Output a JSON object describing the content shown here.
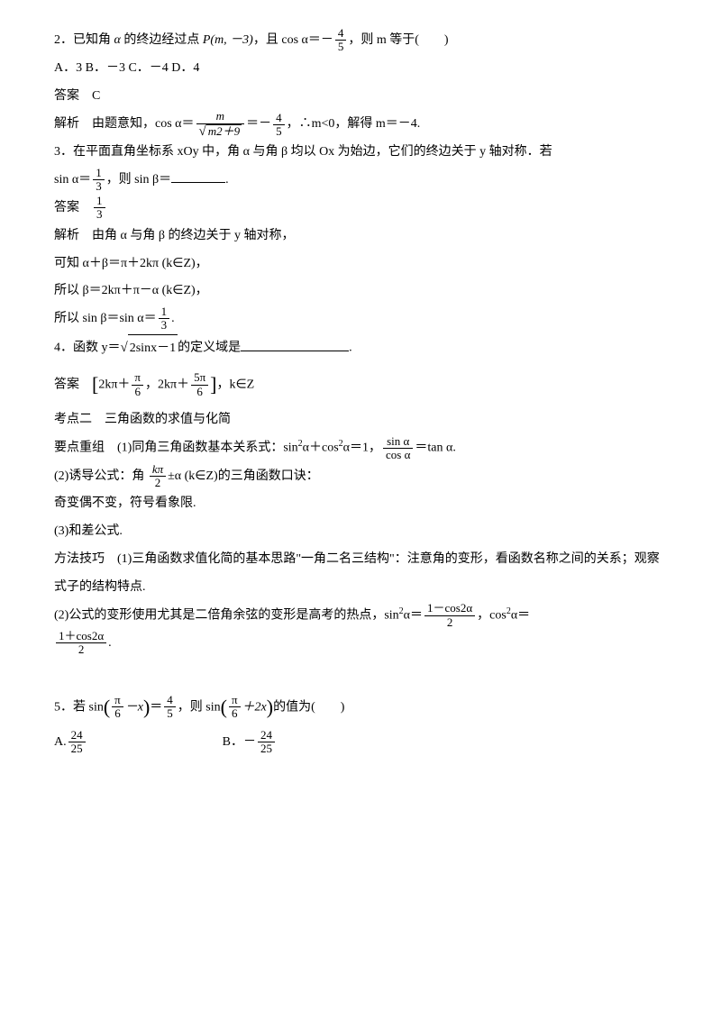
{
  "q2": {
    "stem_a": "2．已知角 ",
    "alpha": "α",
    "stem_b": " 的终边经过点 ",
    "point": "P(m, －3)",
    "stem_c": "，且 cos α＝－",
    "frac_num": "4",
    "frac_den": "5",
    "stem_d": "，则 m 等于(　　)",
    "options": "A．3  B．－3  C．－4  D．4",
    "ans_label": "答案　C",
    "expl_a": "解析　由题意知，cos α＝",
    "expl_frac_num": "m",
    "expl_sqrt": "m2＋9",
    "expl_b": "＝－",
    "expl_c": "，∴m<0，解得 m＝－4."
  },
  "q3": {
    "stem_a": "3．在平面直角坐标系 xOy 中，角 α 与角 β 均以 Ox 为始边，它们的终边关于 y 轴对称．若",
    "stem_b": "sin α＝",
    "frac_num": "1",
    "frac_den": "3",
    "stem_c": "，则 sin β＝",
    "ans_label": "答案　",
    "expl_a": "解析　由角 α 与角 β 的终边关于 y 轴对称，",
    "expl_b": "可知 α＋β＝π＋2kπ (k∈Z)，",
    "expl_c": "所以 β＝2kπ＋π－α (k∈Z)，",
    "expl_d": "所以 sin β＝sin α＝",
    "period": "."
  },
  "q4": {
    "stem_a": "4．函数 y＝",
    "sqrt": "2sinx－1",
    "stem_b": "的定义域是",
    "ans_label": "答案　",
    "br_l": "[",
    "term1_a": "2kπ＋",
    "pi": "π",
    "six": "6",
    "comma": "，",
    "term2_a": "2kπ＋",
    "five_pi": "5π",
    "br_r": "]",
    "ans_tail": "，k∈Z"
  },
  "topic2": {
    "title": "考点二　三角函数的求值与化简",
    "p1_a": "要点重组　(1)同角三角函数基本关系式：sin",
    "p1_b": "α＋cos",
    "p1_c": "α＝1，",
    "sin": "sin α",
    "cos": "cos α",
    "p1_d": "＝tan α.",
    "p2_a": "(2)诱导公式：角 ",
    "kpi": "kπ",
    "two": "2",
    "p2_b": "±α (k∈Z)的三角函数口诀：",
    "p3": "奇变偶不变，符号看象限.",
    "p4": "(3)和差公式.",
    "p5": "方法技巧　(1)三角函数求值化简的基本思路\"一角二名三结构\"：注意角的变形，看函数名称之间的关系；观察式子的结构特点.",
    "p6_a": "(2)公式的变形使用尤其是二倍角余弦的变形是高考的热点，sin",
    "p6_b": "α＝",
    "f1_num": "1－cos2α",
    "f1_den": "2",
    "p6_c": "，cos",
    "p6_d": "α＝",
    "f2_num": "1＋cos2α",
    "f2_den": "2",
    "p6_e": "."
  },
  "q5": {
    "stem_a": "5．若 sin",
    "inner1_a": "－x",
    "eq": "＝",
    "f_num": "4",
    "f_den": "5",
    "stem_b": "，则 sin",
    "inner2_a": "＋2x",
    "stem_c": "的值为(　　)",
    "optA_label": "A.",
    "optA_num": "24",
    "optA_den": "25",
    "optB_label": "B．－",
    "optB_num": "24",
    "optB_den": "25"
  }
}
